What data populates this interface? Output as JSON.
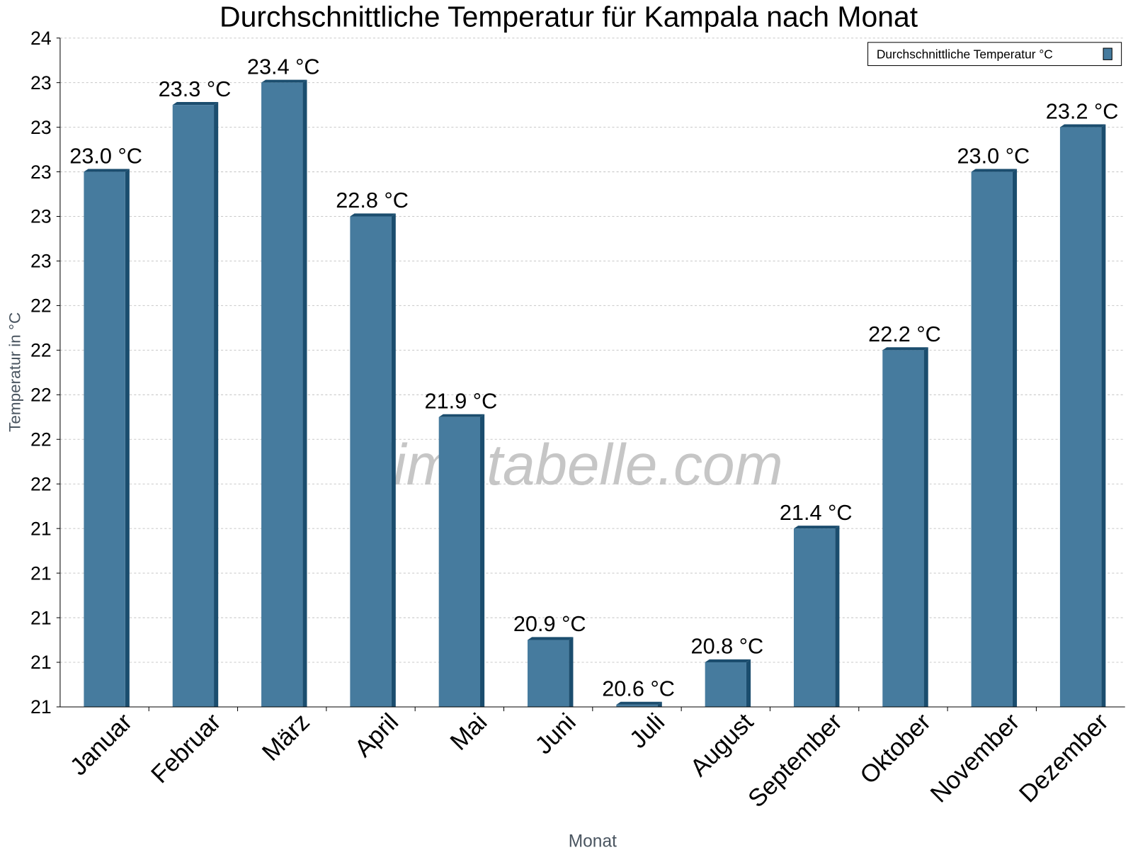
{
  "chart_data": {
    "type": "bar",
    "title": "Durchschnittliche Temperatur für Kampala nach Monat",
    "xlabel": "Monat",
    "ylabel": "Temperatur in °C",
    "categories": [
      "Januar",
      "Februar",
      "März",
      "April",
      "Mai",
      "Juni",
      "Juli",
      "August",
      "September",
      "Oktober",
      "November",
      "Dezember"
    ],
    "series": [
      {
        "name": "Durchschnittliche Temperatur °C",
        "values": [
          23.0,
          23.3,
          23.4,
          22.8,
          21.9,
          20.9,
          20.6,
          20.8,
          21.4,
          22.2,
          23.0,
          23.2
        ]
      }
    ],
    "data_labels": [
      "23.0 °C",
      "23.3 °C",
      "23.4 °C",
      "22.8 °C",
      "21.9 °C",
      "20.9 °C",
      "20.6 °C",
      "20.8 °C",
      "21.4 °C",
      "22.2 °C",
      "23.0 °C",
      "23.2 °C"
    ],
    "ylim": [
      20.6,
      23.6
    ],
    "yticks": [
      20.6,
      20.8,
      21.0,
      21.2,
      21.4,
      21.6,
      21.8,
      22.0,
      22.2,
      22.4,
      22.6,
      22.8,
      23.0,
      23.2,
      23.4,
      23.6
    ],
    "ytick_labels": [
      "21",
      "21",
      "21",
      "21",
      "21",
      "22",
      "22",
      "22",
      "22",
      "22",
      "23",
      "23",
      "23",
      "23",
      "23",
      "24"
    ],
    "grid": true,
    "legend_position": "top-right",
    "colors": {
      "bar": "#467b9e",
      "bar_dark": "#1b4d6e"
    },
    "watermark": "klimatabelle.com"
  }
}
